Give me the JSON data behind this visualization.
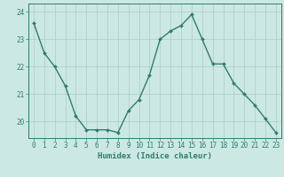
{
  "x": [
    0,
    1,
    2,
    3,
    4,
    5,
    6,
    7,
    8,
    9,
    10,
    11,
    12,
    13,
    14,
    15,
    16,
    17,
    18,
    19,
    20,
    21,
    22,
    23
  ],
  "y": [
    23.6,
    22.5,
    22.0,
    21.3,
    20.2,
    19.7,
    19.7,
    19.7,
    19.6,
    20.4,
    20.8,
    21.7,
    23.0,
    23.3,
    23.5,
    23.9,
    23.0,
    22.1,
    22.1,
    21.4,
    21.0,
    20.6,
    20.1,
    19.6
  ],
  "line_color": "#2e7d6e",
  "marker": "D",
  "marker_size": 2.0,
  "bg_color": "#cce8e3",
  "grid_color": "#aaccc7",
  "axis_color": "#2e7d6e",
  "xlabel": "Humidex (Indice chaleur)",
  "ylim": [
    19.4,
    24.3
  ],
  "xlim": [
    -0.5,
    23.5
  ],
  "yticks": [
    20,
    21,
    22,
    23,
    24
  ],
  "xticks": [
    0,
    1,
    2,
    3,
    4,
    5,
    6,
    7,
    8,
    9,
    10,
    11,
    12,
    13,
    14,
    15,
    16,
    17,
    18,
    19,
    20,
    21,
    22,
    23
  ],
  "xlabel_fontsize": 6.5,
  "tick_fontsize": 5.5,
  "line_width": 1.0,
  "fig_width": 3.2,
  "fig_height": 2.0,
  "dpi": 100
}
